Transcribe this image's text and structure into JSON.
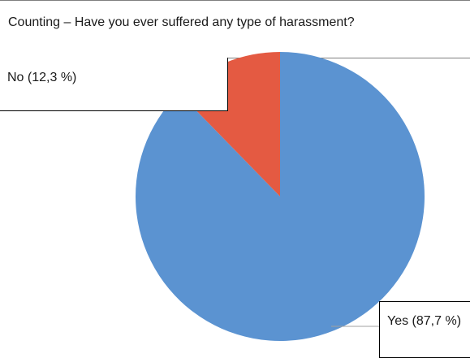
{
  "chart_data": {
    "type": "pie",
    "title": "Counting – Have you ever suffered any type of harassment?",
    "slices": [
      {
        "label": "Yes (87,7 %)",
        "value": 87.7,
        "color": "#5b93d1"
      },
      {
        "label": "No (12,3 %)",
        "value": 12.3,
        "color": "#e45a42"
      }
    ],
    "legend": "none"
  }
}
